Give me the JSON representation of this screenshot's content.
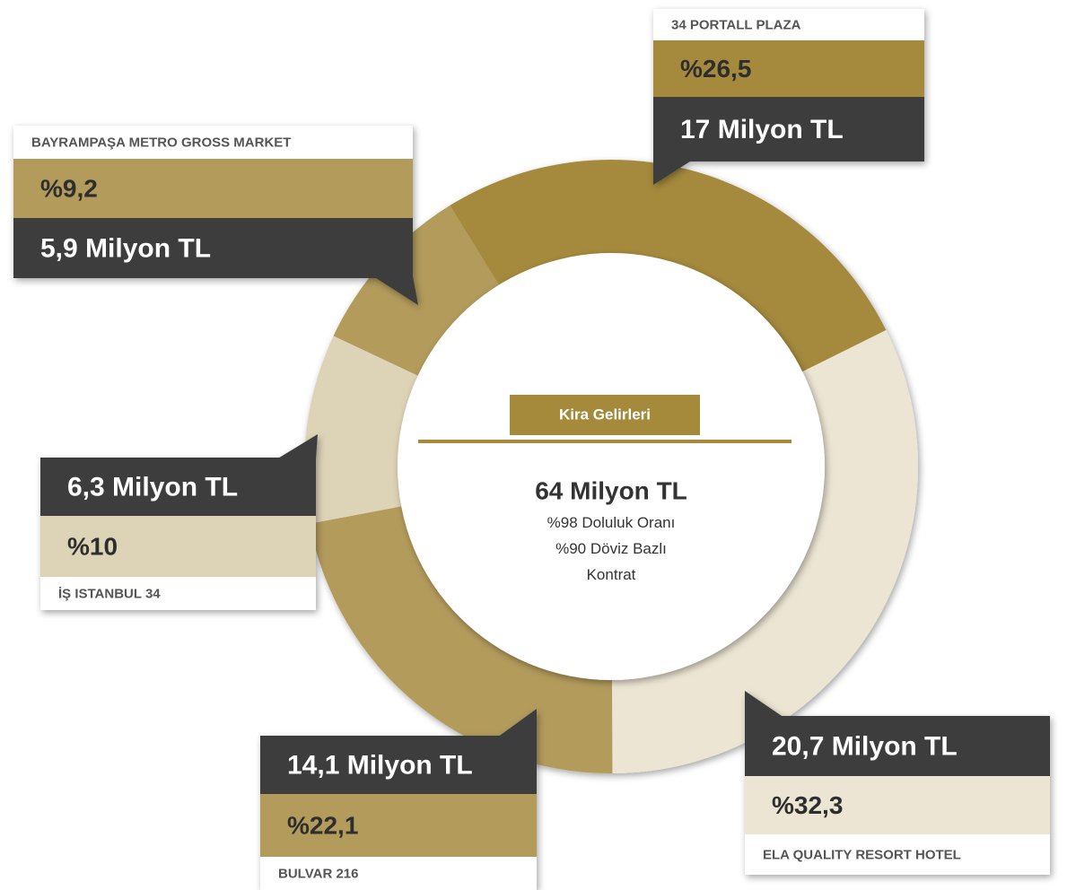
{
  "chart_data": {
    "type": "donut",
    "categories": [
      "34 PORTALL PLAZA",
      "ELA QUALITY RESORT HOTEL",
      "BULVAR 216",
      "İŞ ISTANBUL 34",
      "BAYRAMPAŞA METRO GROSS MARKET"
    ],
    "values": [
      26.5,
      32.3,
      22.1,
      10,
      9.2
    ],
    "value_labels": [
      "%26,5",
      "%32,3",
      "%22,1",
      "%10",
      "%9,2"
    ],
    "amount_labels": [
      "17 Milyon TL",
      "20,7 Milyon TL",
      "14,1 Milyon TL",
      "6,3 Milyon TL",
      "5,9 Milyon TL"
    ],
    "colors": [
      "#a58a3c",
      "#ece5d3",
      "#b39b5c",
      "#ddd3b7",
      "#b39b5c"
    ],
    "center": {
      "badge": "Kira Gelirleri",
      "total": "64 Milyon TL",
      "lines": [
        "%98 Doluluk Oranı",
        "%90 Döviz Bazlı Kontrat"
      ]
    }
  }
}
